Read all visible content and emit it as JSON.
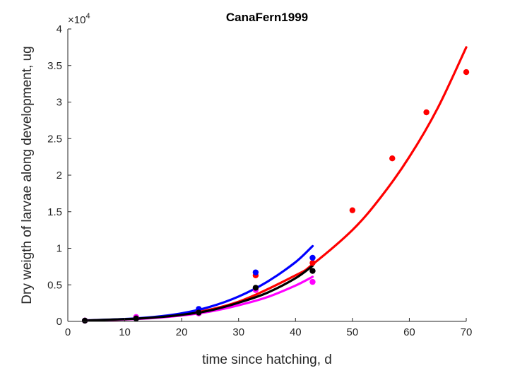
{
  "chart_data": {
    "type": "scatter",
    "title": "CanaFern1999",
    "xlabel": "time since hatching, d",
    "ylabel": "Dry weigth of larvae along development, ug",
    "xlim": [
      0,
      70
    ],
    "ylim": [
      0,
      40000
    ],
    "xticks": [
      0,
      10,
      20,
      30,
      40,
      50,
      60,
      70
    ],
    "yticks": [
      0,
      5000,
      10000,
      15000,
      20000,
      25000,
      30000,
      35000,
      40000
    ],
    "ytick_labels": [
      "0",
      "0.5",
      "1",
      "1.5",
      "2",
      "2.5",
      "3",
      "3.5",
      "4"
    ],
    "y_exponent": {
      "base": "×10",
      "power": "4"
    },
    "grid": false,
    "legend": "none",
    "series": [
      {
        "color": "#ff0000",
        "points": [
          [
            3,
            100
          ],
          [
            12,
            500
          ],
          [
            23,
            1400
          ],
          [
            33,
            6300
          ],
          [
            43,
            8000
          ],
          [
            50,
            15200
          ],
          [
            57,
            22300
          ],
          [
            63,
            28600
          ],
          [
            70,
            34100
          ]
        ],
        "curve": [
          [
            3,
            130
          ],
          [
            10,
            280
          ],
          [
            20,
            900
          ],
          [
            30,
            2700
          ],
          [
            40,
            6300
          ],
          [
            43,
            7800
          ],
          [
            50,
            12500
          ],
          [
            55,
            17000
          ],
          [
            60,
            22500
          ],
          [
            65,
            29200
          ],
          [
            70,
            37500
          ]
        ]
      },
      {
        "color": "#0000ff",
        "points": [
          [
            3,
            100
          ],
          [
            12,
            400
          ],
          [
            23,
            1700
          ],
          [
            33,
            6700
          ],
          [
            43,
            8700
          ]
        ],
        "curve": [
          [
            3,
            130
          ],
          [
            10,
            330
          ],
          [
            15,
            600
          ],
          [
            20,
            1100
          ],
          [
            25,
            2000
          ],
          [
            30,
            3400
          ],
          [
            35,
            5400
          ],
          [
            40,
            8100
          ],
          [
            43,
            10300
          ]
        ]
      },
      {
        "color": "#ff00ff",
        "points": [
          [
            3,
            100
          ],
          [
            12,
            600
          ],
          [
            23,
            1100
          ],
          [
            33,
            4300
          ],
          [
            43,
            5400
          ]
        ],
        "curve": [
          [
            3,
            110
          ],
          [
            10,
            260
          ],
          [
            15,
            450
          ],
          [
            20,
            800
          ],
          [
            25,
            1350
          ],
          [
            30,
            2200
          ],
          [
            35,
            3300
          ],
          [
            40,
            4900
          ],
          [
            43,
            6100
          ]
        ]
      },
      {
        "color": "#000000",
        "points": [
          [
            3,
            100
          ],
          [
            12,
            400
          ],
          [
            23,
            1200
          ],
          [
            33,
            4600
          ],
          [
            43,
            6900
          ]
        ],
        "curve": [
          [
            3,
            120
          ],
          [
            10,
            300
          ],
          [
            15,
            520
          ],
          [
            20,
            900
          ],
          [
            25,
            1500
          ],
          [
            30,
            2550
          ],
          [
            35,
            3900
          ],
          [
            40,
            5900
          ],
          [
            43,
            7600
          ]
        ]
      }
    ]
  }
}
